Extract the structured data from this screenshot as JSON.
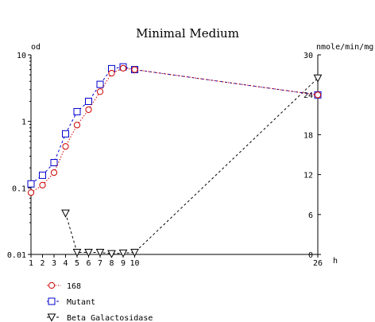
{
  "chart_data": {
    "type": "scatter",
    "title": "Minimal Medium",
    "left_axis": {
      "unit": "od",
      "scale": "log",
      "range": [
        0.01,
        10
      ],
      "ticks": [
        0.01,
        0.1,
        1,
        10
      ],
      "tick_labels": [
        "0.01",
        "0.1",
        "1",
        "10"
      ]
    },
    "right_axis": {
      "unit": "nmole/min/mg",
      "scale": "linear",
      "range": [
        0,
        30
      ],
      "ticks": [
        0,
        6,
        12,
        18,
        24,
        30
      ],
      "tick_labels": [
        "0",
        "6",
        "12",
        "18",
        "24",
        "30"
      ]
    },
    "x_axis": {
      "unit": "h",
      "ticks": [
        1,
        2,
        3,
        4,
        5,
        6,
        7,
        8,
        9,
        10,
        26
      ],
      "tick_labels": [
        "1",
        "2",
        "3",
        "4",
        "5",
        "6",
        "7",
        "8",
        "9",
        "10",
        "26"
      ]
    },
    "legend_position": "bottom-left",
    "series": [
      {
        "name": "168",
        "axis": "left",
        "marker": "circle",
        "color": "#cc0000",
        "line_style": "dotted",
        "points": [
          [
            1,
            0.085
          ],
          [
            2,
            0.11
          ],
          [
            3,
            0.17
          ],
          [
            4,
            0.42
          ],
          [
            5,
            0.88
          ],
          [
            6,
            1.5
          ],
          [
            7,
            2.8
          ],
          [
            8,
            5.3
          ],
          [
            9,
            6.3
          ],
          [
            10,
            6.0
          ],
          [
            26,
            2.5
          ]
        ]
      },
      {
        "name": "Mutant",
        "axis": "left",
        "marker": "square",
        "color": "#0000cc",
        "line_style": "dashed",
        "points": [
          [
            1,
            0.115
          ],
          [
            2,
            0.155
          ],
          [
            3,
            0.24
          ],
          [
            4,
            0.65
          ],
          [
            5,
            1.4
          ],
          [
            6,
            2.0
          ],
          [
            7,
            3.6
          ],
          [
            8,
            6.2
          ],
          [
            9,
            6.6
          ],
          [
            10,
            6.0
          ],
          [
            26,
            2.5
          ]
        ]
      },
      {
        "name": "Beta Galactosidase",
        "axis": "right",
        "marker": "triangle-down",
        "color": "#000000",
        "line_style": "dashed",
        "points": [
          [
            4,
            6.2
          ],
          [
            5,
            0.3
          ],
          [
            6,
            0.3
          ],
          [
            7,
            0.3
          ],
          [
            8,
            0.1
          ],
          [
            9,
            0.2
          ],
          [
            10,
            0.3
          ],
          [
            26,
            26.5
          ]
        ]
      }
    ]
  }
}
